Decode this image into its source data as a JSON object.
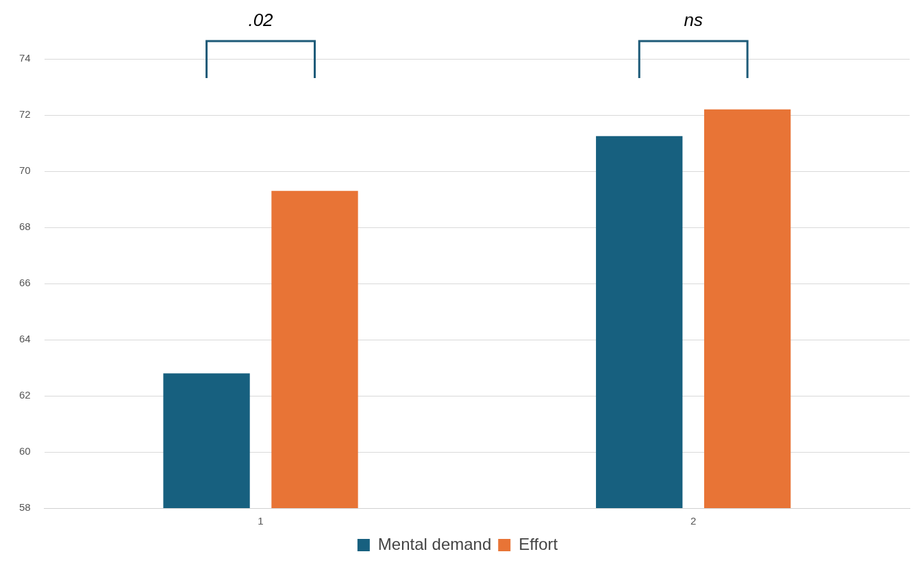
{
  "chart_data": {
    "type": "bar",
    "categories": [
      "1",
      "2"
    ],
    "series": [
      {
        "name": "Mental demand",
        "color": "#17607f",
        "values": [
          62.8,
          71.25
        ]
      },
      {
        "name": "Effort",
        "color": "#e87436",
        "values": [
          69.3,
          72.2
        ]
      }
    ],
    "ylim": [
      58,
      74
    ],
    "yticks": [
      58,
      60,
      62,
      64,
      66,
      68,
      70,
      72,
      74
    ],
    "grid": "y",
    "legend": "bottom",
    "annotations": [
      ".02",
      "ns"
    ]
  }
}
